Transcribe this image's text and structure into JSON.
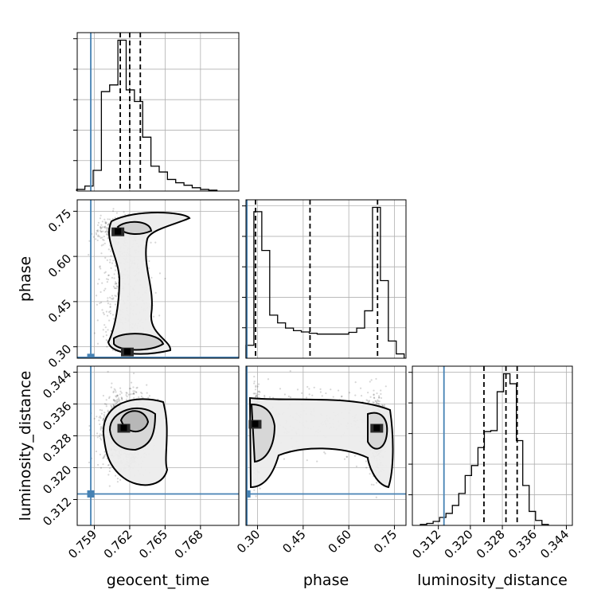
{
  "chart_data": {
    "type": "corner",
    "parameters": [
      "geocent_time",
      "phase",
      "luminosity_distance"
    ],
    "truths": {
      "geocent_time": 0.7587,
      "phase": 0.265,
      "luminosity_distance": 0.3134
    },
    "truth_color": "#4682b4",
    "ticks": {
      "geocent_time": [
        0.759,
        0.762,
        0.765,
        0.768
      ],
      "phase": [
        0.3,
        0.45,
        0.6,
        0.75
      ],
      "luminosity_distance": [
        0.312,
        0.32,
        0.328,
        0.336,
        0.344
      ]
    },
    "tick_labels": {
      "geocent_time": [
        "0.759",
        "0.762",
        "0.765",
        "0.768"
      ],
      "phase": [
        "0.30",
        "0.45",
        "0.60",
        "0.75"
      ],
      "luminosity_distance": [
        "0.312",
        "0.320",
        "0.328",
        "0.336",
        "0.344"
      ]
    },
    "ranges": {
      "geocent_time": [
        0.75755,
        0.77125
      ],
      "phase": [
        0.262,
        0.788
      ],
      "luminosity_distance": [
        0.3055,
        0.3455
      ]
    },
    "quantiles": {
      "geocent_time": [
        0.7612,
        0.762,
        0.7629
      ],
      "phase": [
        0.2935,
        0.4725,
        0.6945
      ],
      "luminosity_distance": [
        0.3234,
        0.3289,
        0.3317
      ]
    },
    "histograms": {
      "geocent_time": {
        "edges": [
          0.7575,
          0.7582,
          0.7589,
          0.7596,
          0.7603,
          0.761,
          0.7617,
          0.7624,
          0.7631,
          0.7638,
          0.7645,
          0.7652,
          0.7659,
          0.7666,
          0.7673,
          0.768,
          0.7687,
          0.7694
        ],
        "counts": [
          2,
          6,
          25,
          120,
          128,
          182,
          122,
          108,
          65,
          30,
          23,
          14,
          10,
          7,
          4,
          2,
          1
        ]
      },
      "phase": {
        "edges": [
          0.262,
          0.288,
          0.314,
          0.34,
          0.366,
          0.392,
          0.418,
          0.444,
          0.47,
          0.496,
          0.522,
          0.548,
          0.574,
          0.6,
          0.626,
          0.652,
          0.678,
          0.704,
          0.73,
          0.756,
          0.782
        ],
        "counts": [
          30,
          340,
          250,
          100,
          82,
          70,
          64,
          61,
          58,
          56,
          56,
          56,
          56,
          60,
          70,
          110,
          350,
          180,
          40,
          10
        ]
      },
      "luminosity_distance": {
        "edges": [
          0.3075,
          0.3091,
          0.3107,
          0.3123,
          0.3139,
          0.3155,
          0.3171,
          0.3187,
          0.3203,
          0.3219,
          0.3235,
          0.3251,
          0.3267,
          0.3283,
          0.3299,
          0.3315,
          0.3331,
          0.3347,
          0.3363,
          0.3379,
          0.3395
        ],
        "counts": [
          1,
          2,
          4,
          8,
          12,
          20,
          32,
          50,
          60,
          78,
          94,
          95,
          134,
          152,
          142,
          85,
          40,
          14,
          5,
          1
        ]
      }
    },
    "scatter_pairs": [
      {
        "x": "geocent_time",
        "y": "phase"
      },
      {
        "x": "geocent_time",
        "y": "luminosity_distance"
      },
      {
        "x": "phase",
        "y": "luminosity_distance"
      }
    ],
    "density_peaks": [
      {
        "x": "geocent_time",
        "y": "phase",
        "at": [
          0.7618,
          0.284
        ]
      },
      {
        "x": "geocent_time",
        "y": "phase",
        "at": [
          0.761,
          0.683
        ]
      },
      {
        "x": "geocent_time",
        "y": "luminosity_distance",
        "at": [
          0.7615,
          0.33
        ]
      },
      {
        "x": "phase",
        "y": "luminosity_distance",
        "at": [
          0.292,
          0.331
        ]
      },
      {
        "x": "phase",
        "y": "luminosity_distance",
        "at": [
          0.692,
          0.33
        ]
      }
    ],
    "grid": true
  }
}
